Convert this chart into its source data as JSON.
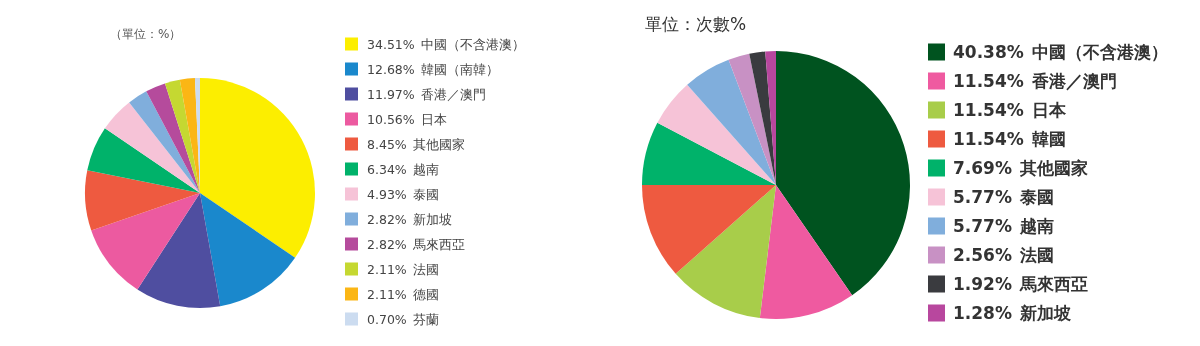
{
  "chart_data": [
    {
      "type": "pie",
      "title": "（單位：%）",
      "legend": "right",
      "categories": [
        "中國（不含港澳）",
        "韓國（南韓）",
        "香港／澳門",
        "日本",
        "其他國家",
        "越南",
        "泰國",
        "新加坡",
        "馬來西亞",
        "法國",
        "德國",
        "芬蘭"
      ],
      "values": [
        34.51,
        12.68,
        11.97,
        10.56,
        8.45,
        6.34,
        4.93,
        2.82,
        2.82,
        2.11,
        2.11,
        0.7
      ],
      "value_labels": [
        "34.51%",
        "12.68%",
        "11.97%",
        "10.56%",
        "8.45%",
        "6.34%",
        "4.93%",
        "2.82%",
        "2.82%",
        "2.11%",
        "2.11%",
        "0.70%"
      ],
      "colors": [
        "#fcee00",
        "#1a88cc",
        "#4f4ea0",
        "#ec5aa0",
        "#ee5a40",
        "#00b26a",
        "#f6c3d7",
        "#80aedc",
        "#b54b9c",
        "#c5d831",
        "#fbb615",
        "#ccdcf0"
      ]
    },
    {
      "type": "pie",
      "title": "單位：次數%",
      "legend": "right",
      "categories": [
        "中國（不含港澳）",
        "香港／澳門",
        "日本",
        "韓國",
        "其他國家",
        "泰國",
        "越南",
        "法國",
        "馬來西亞",
        "新加坡"
      ],
      "values": [
        40.38,
        11.54,
        11.54,
        11.54,
        7.69,
        5.77,
        5.77,
        2.56,
        1.92,
        1.28
      ],
      "value_labels": [
        "40.38%",
        "11.54%",
        "11.54%",
        "11.54%",
        "7.69%",
        "5.77%",
        "5.77%",
        "2.56%",
        "1.92%",
        "1.28%"
      ],
      "colors": [
        "#00531f",
        "#ef5aa0",
        "#a8cd4a",
        "#ee5a40",
        "#00b26a",
        "#f6c3d7",
        "#80aedc",
        "#c891c4",
        "#3a3b3f",
        "#b8479e"
      ]
    }
  ]
}
